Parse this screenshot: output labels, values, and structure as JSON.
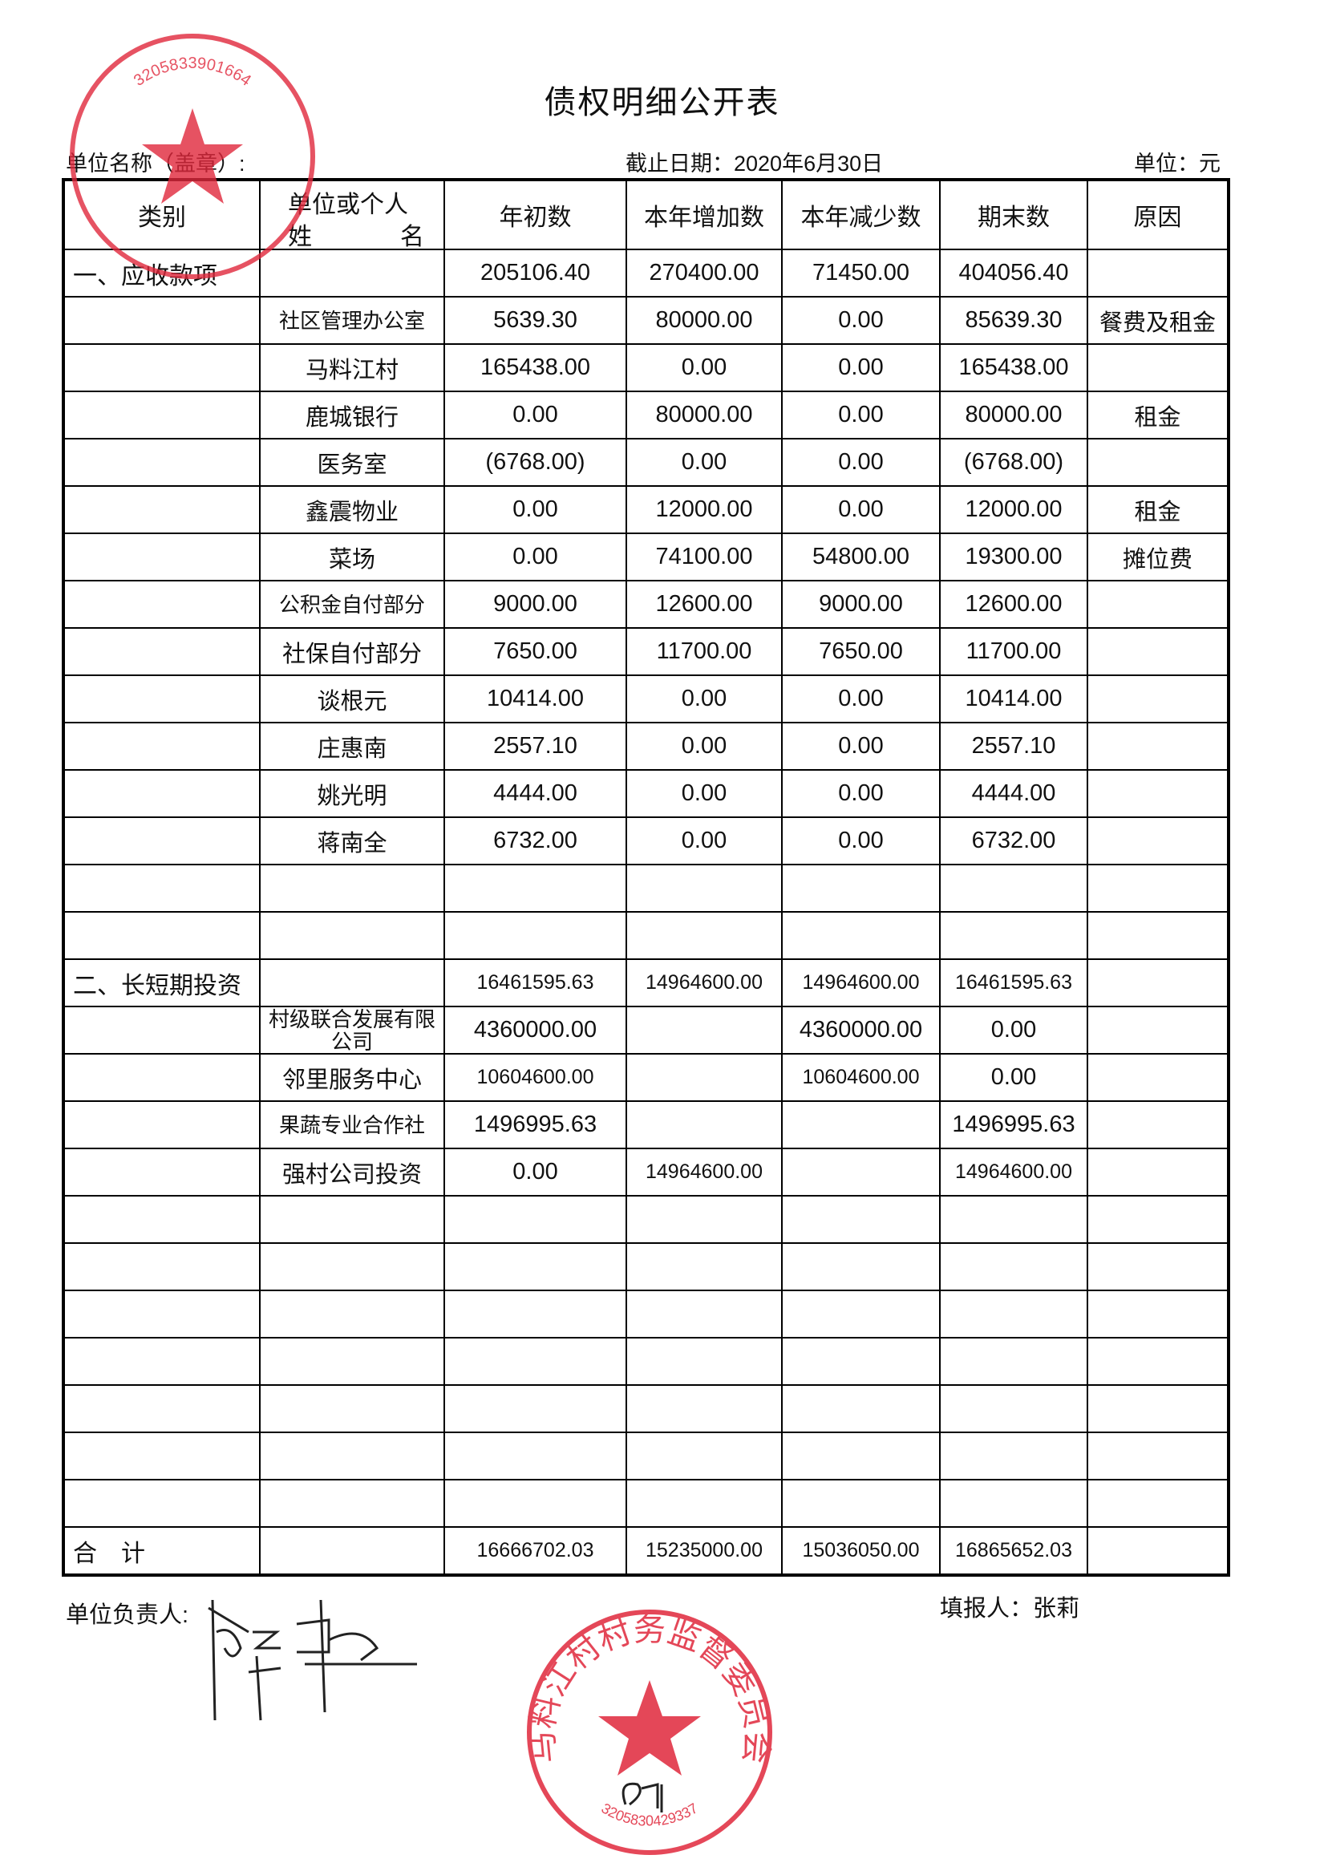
{
  "title": "债权明细公开表",
  "unit_name_label": "单位名称（盖章）:",
  "cutoff_date": "截止日期：2020年6月30日",
  "unit": "单位：元",
  "headers": {
    "category": "类别",
    "name_line1": "单位或个人",
    "name_line2_a": "姓",
    "name_line2_b": "名",
    "opening": "年初数",
    "increase": "本年增加数",
    "decrease": "本年减少数",
    "closing": "期末数",
    "reason": "原因"
  },
  "rows": [
    {
      "category": "一、应收款项",
      "name": "",
      "opening": "205106.40",
      "increase": "270400.00",
      "decrease": "71450.00",
      "closing": "404056.40",
      "reason": ""
    },
    {
      "category": "",
      "name": "社区管理办公室",
      "opening": "5639.30",
      "increase": "80000.00",
      "decrease": "0.00",
      "closing": "85639.30",
      "reason": "餐费及租金"
    },
    {
      "category": "",
      "name": "马料江村",
      "opening": "165438.00",
      "increase": "0.00",
      "decrease": "0.00",
      "closing": "165438.00",
      "reason": ""
    },
    {
      "category": "",
      "name": "鹿城银行",
      "opening": "0.00",
      "increase": "80000.00",
      "decrease": "0.00",
      "closing": "80000.00",
      "reason": "租金"
    },
    {
      "category": "",
      "name": "医务室",
      "opening": "(6768.00)",
      "increase": "0.00",
      "decrease": "0.00",
      "closing": "(6768.00)",
      "reason": ""
    },
    {
      "category": "",
      "name": "鑫震物业",
      "opening": "0.00",
      "increase": "12000.00",
      "decrease": "0.00",
      "closing": "12000.00",
      "reason": "租金"
    },
    {
      "category": "",
      "name": "菜场",
      "opening": "0.00",
      "increase": "74100.00",
      "decrease": "54800.00",
      "closing": "19300.00",
      "reason": "摊位费"
    },
    {
      "category": "",
      "name": "公积金自付部分",
      "opening": "9000.00",
      "increase": "12600.00",
      "decrease": "9000.00",
      "closing": "12600.00",
      "reason": ""
    },
    {
      "category": "",
      "name": "社保自付部分",
      "opening": "7650.00",
      "increase": "11700.00",
      "decrease": "7650.00",
      "closing": "11700.00",
      "reason": ""
    },
    {
      "category": "",
      "name": "谈根元",
      "opening": "10414.00",
      "increase": "0.00",
      "decrease": "0.00",
      "closing": "10414.00",
      "reason": ""
    },
    {
      "category": "",
      "name": "庄惠南",
      "opening": "2557.10",
      "increase": "0.00",
      "decrease": "0.00",
      "closing": "2557.10",
      "reason": ""
    },
    {
      "category": "",
      "name": "姚光明",
      "opening": "4444.00",
      "increase": "0.00",
      "decrease": "0.00",
      "closing": "4444.00",
      "reason": ""
    },
    {
      "category": "",
      "name": "蒋南全",
      "opening": "6732.00",
      "increase": "0.00",
      "decrease": "0.00",
      "closing": "6732.00",
      "reason": ""
    },
    {
      "category": "",
      "name": "",
      "opening": "",
      "increase": "",
      "decrease": "",
      "closing": "",
      "reason": ""
    },
    {
      "category": "",
      "name": "",
      "opening": "",
      "increase": "",
      "decrease": "",
      "closing": "",
      "reason": ""
    },
    {
      "category": "二、长短期投资",
      "name": "",
      "opening": "16461595.63",
      "increase": "14964600.00",
      "decrease": "14964600.00",
      "closing": "16461595.63",
      "reason": ""
    },
    {
      "category": "",
      "name": "村级联合发展有限公司",
      "opening": "4360000.00",
      "increase": "",
      "decrease": "4360000.00",
      "closing": "0.00",
      "reason": ""
    },
    {
      "category": "",
      "name": "邻里服务中心",
      "opening": "10604600.00",
      "increase": "",
      "decrease": "10604600.00",
      "closing": "0.00",
      "reason": ""
    },
    {
      "category": "",
      "name": "果蔬专业合作社",
      "opening": "1496995.63",
      "increase": "",
      "decrease": "",
      "closing": "1496995.63",
      "reason": ""
    },
    {
      "category": "",
      "name": "强村公司投资",
      "opening": "0.00",
      "increase": "14964600.00",
      "decrease": "",
      "closing": "14964600.00",
      "reason": ""
    },
    {
      "category": "",
      "name": "",
      "opening": "",
      "increase": "",
      "decrease": "",
      "closing": "",
      "reason": ""
    },
    {
      "category": "",
      "name": "",
      "opening": "",
      "increase": "",
      "decrease": "",
      "closing": "",
      "reason": ""
    },
    {
      "category": "",
      "name": "",
      "opening": "",
      "increase": "",
      "decrease": "",
      "closing": "",
      "reason": ""
    },
    {
      "category": "",
      "name": "",
      "opening": "",
      "increase": "",
      "decrease": "",
      "closing": "",
      "reason": ""
    },
    {
      "category": "",
      "name": "",
      "opening": "",
      "increase": "",
      "decrease": "",
      "closing": "",
      "reason": ""
    },
    {
      "category": "",
      "name": "",
      "opening": "",
      "increase": "",
      "decrease": "",
      "closing": "",
      "reason": ""
    },
    {
      "category": "",
      "name": "",
      "opening": "",
      "increase": "",
      "decrease": "",
      "closing": "",
      "reason": ""
    },
    {
      "category": "合　计",
      "name": "",
      "opening": "16666702.03",
      "increase": "15235000.00",
      "decrease": "15036050.00",
      "closing": "16865652.03",
      "reason": ""
    }
  ],
  "footer": {
    "leader_label": "单位负责人:",
    "preparer": "填报人：张莉"
  },
  "stamps": {
    "color": "#e0283c",
    "top_left_code": "3205833901664",
    "bottom_name": "马料江村村务监督委员会",
    "bottom_code": "3205830429337"
  }
}
